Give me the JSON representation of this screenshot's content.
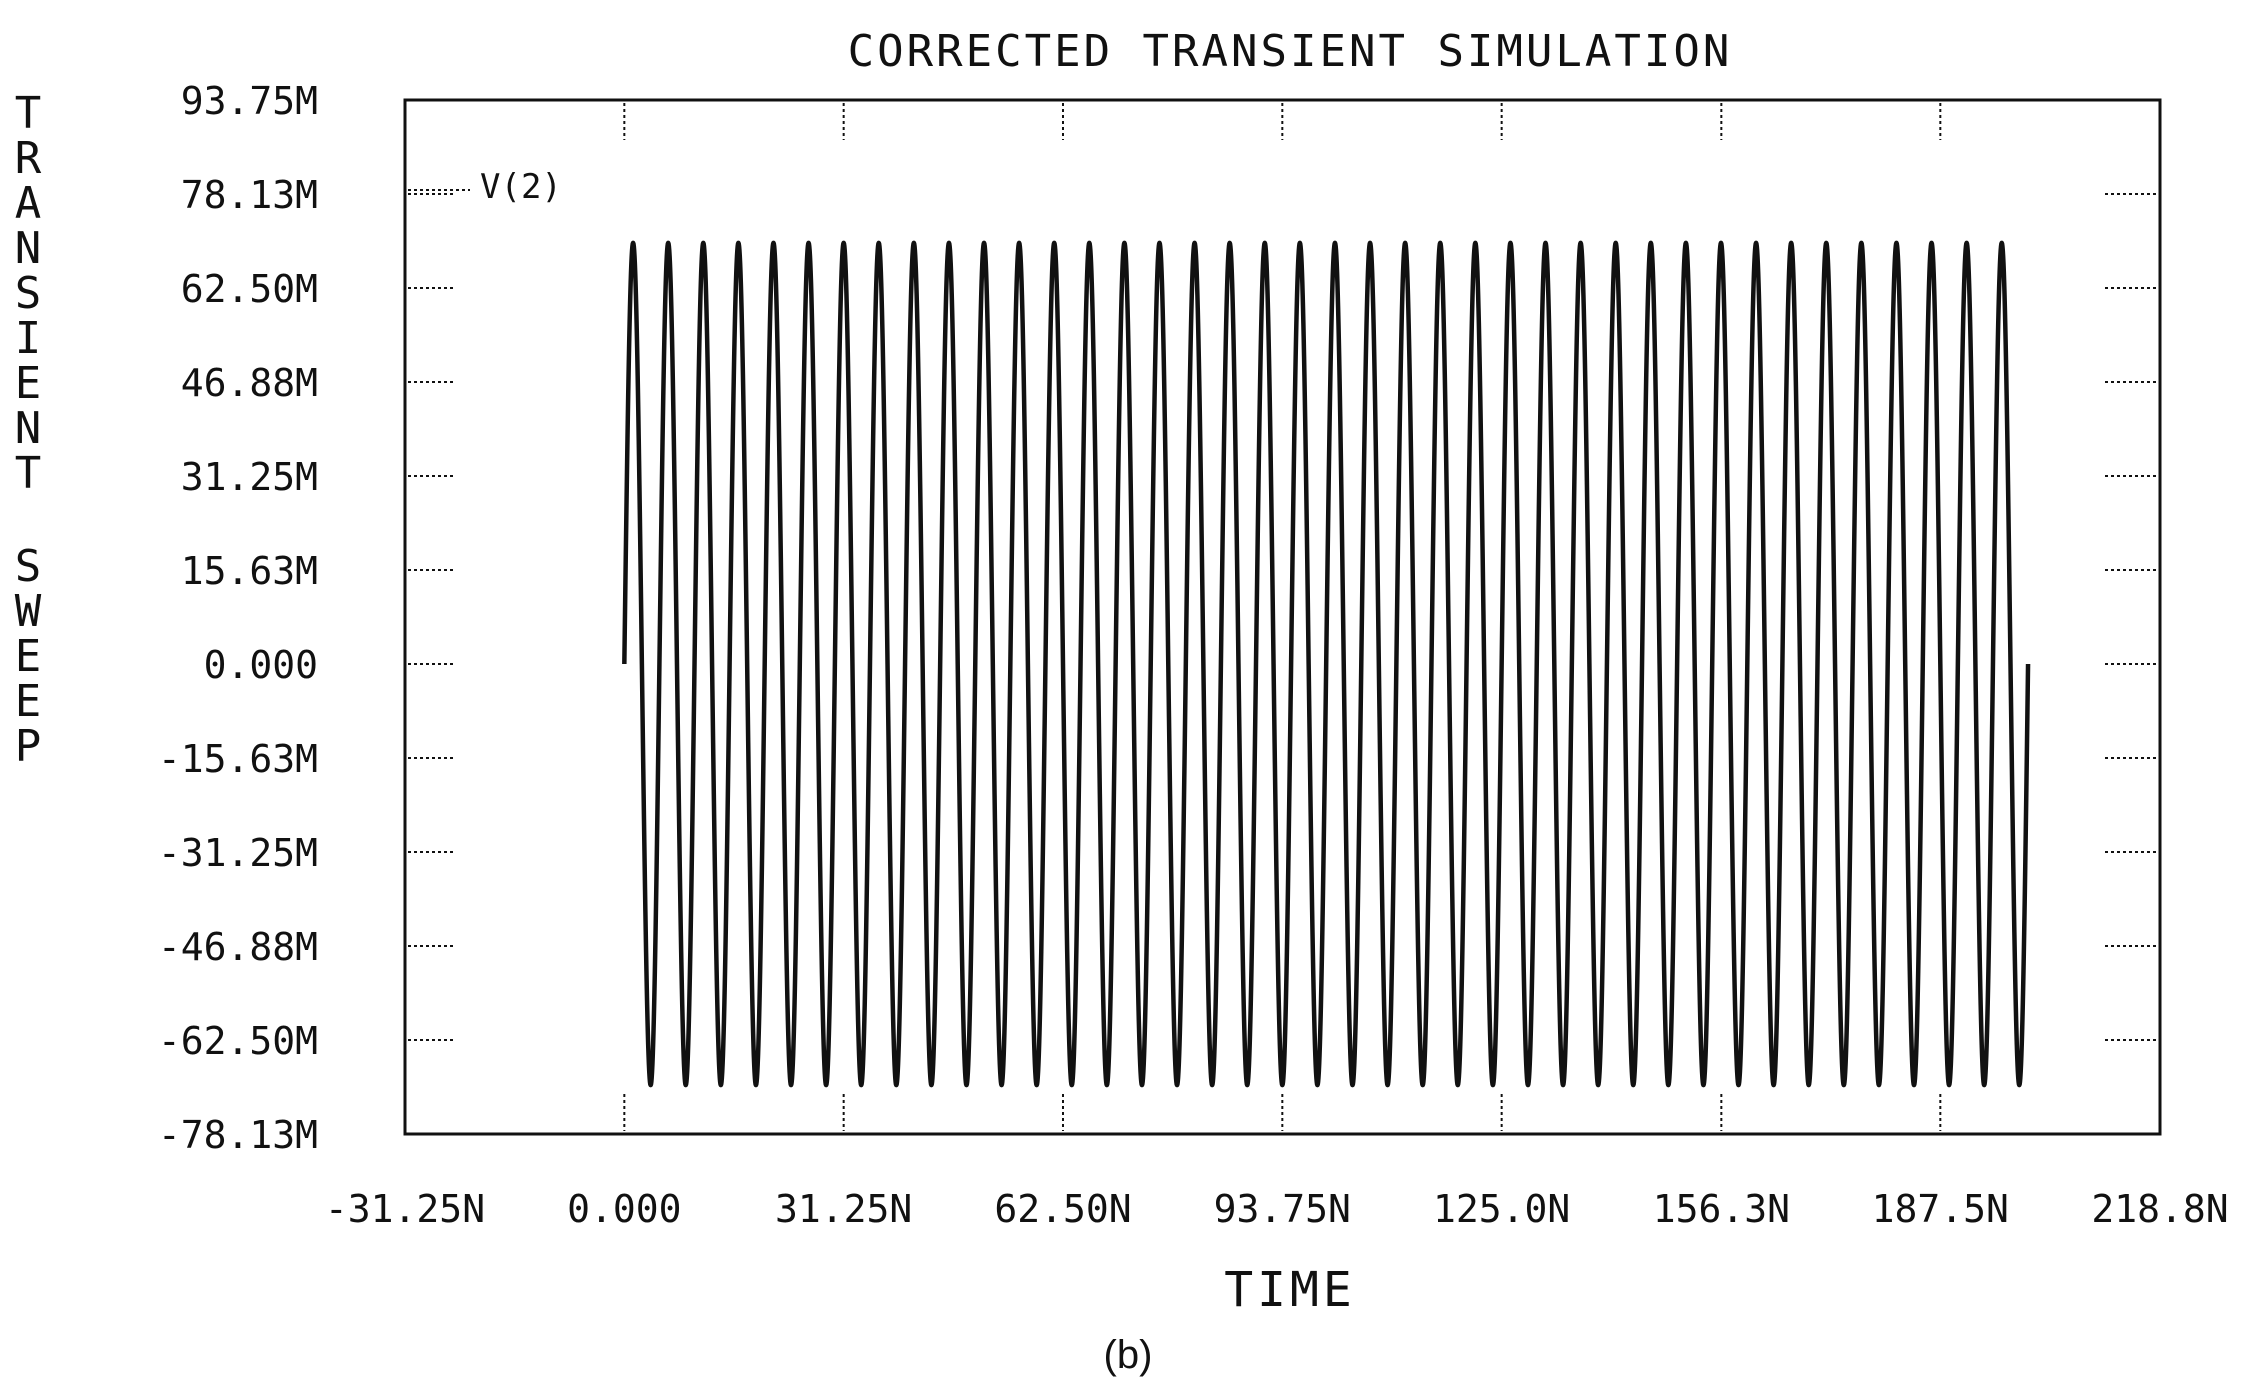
{
  "chart_data": {
    "type": "line",
    "title": "CORRECTED TRANSIENT SIMULATION",
    "xlabel": "TIME",
    "ylabel": "TRANSIENT SWEEP",
    "caption": "(b)",
    "xlim": [
      -31.25,
      218.8
    ],
    "ylim": [
      -78.13,
      93.75
    ],
    "x_unit": "ns",
    "y_unit": "mV",
    "x_ticks": [
      -31.25,
      0,
      31.25,
      62.5,
      93.75,
      125.0,
      156.3,
      187.5,
      218.8
    ],
    "x_tick_labels": [
      "-31.25N",
      "0.000",
      "31.25N",
      "62.50N",
      "93.75N",
      "125.0N",
      "156.3N",
      "187.5N",
      "218.8N"
    ],
    "y_ticks": [
      93.75,
      78.13,
      62.5,
      46.88,
      31.25,
      15.63,
      0,
      -15.63,
      -31.25,
      -46.88,
      -62.5,
      -78.13
    ],
    "y_tick_labels": [
      "93.75M",
      "78.13M",
      "62.50M",
      "46.88M",
      "31.25M",
      "15.63M",
      "0.000",
      "-15.63M",
      "-31.25M",
      "-46.88M",
      "-62.50M",
      "-78.13M"
    ],
    "grid": false,
    "series": [
      {
        "name": "V(2)",
        "waveform": "sine",
        "amplitude": 70,
        "offset": 0,
        "t_start": 0,
        "t_end": 200,
        "cycles": 40
      }
    ]
  }
}
